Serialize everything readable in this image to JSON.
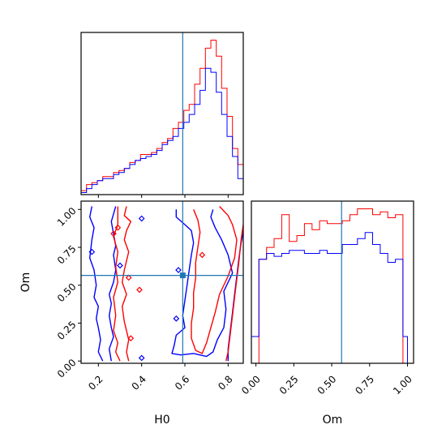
{
  "chart_data": {
    "type": "corner",
    "parameters": [
      "H0",
      "Om"
    ],
    "truth": {
      "H0": 0.59,
      "Om": 0.565
    },
    "colors": {
      "series_a": "#ff0000",
      "series_b": "#0000ff",
      "truth": "#1f77b4"
    },
    "h0_hist": {
      "type": "histogram",
      "x_range": [
        0.12,
        0.87
      ],
      "ticks": [
        0.2,
        0.4,
        0.6,
        0.8
      ],
      "tick_labels": [
        "0.2",
        "0.4",
        "0.6",
        "0.8"
      ],
      "xlabel": "H0",
      "edges": [
        0.12,
        0.145,
        0.17,
        0.195,
        0.22,
        0.245,
        0.27,
        0.295,
        0.32,
        0.345,
        0.37,
        0.395,
        0.42,
        0.445,
        0.47,
        0.495,
        0.52,
        0.545,
        0.57,
        0.595,
        0.62,
        0.645,
        0.67,
        0.695,
        0.72,
        0.745,
        0.77,
        0.795,
        0.82,
        0.845,
        0.87
      ],
      "series": [
        {
          "color_key": "series_a",
          "values": [
            2,
            5,
            6,
            7,
            9,
            9,
            11,
            12,
            13,
            16,
            17,
            20,
            20,
            21,
            23,
            26,
            28,
            33,
            36,
            42,
            45,
            55,
            63,
            73,
            77,
            69,
            53,
            39,
            23,
            15
          ]
        },
        {
          "color_key": "series_b",
          "values": [
            1,
            3,
            5,
            7,
            8,
            8,
            10,
            11,
            13,
            15,
            17,
            18,
            19,
            20,
            22,
            25,
            27,
            29,
            33,
            36,
            40,
            45,
            52,
            63,
            61,
            51,
            40,
            29,
            19,
            8
          ]
        }
      ]
    },
    "om_hist": {
      "type": "histogram",
      "x_range": [
        -0.03,
        1.04
      ],
      "ticks": [
        0.0,
        0.25,
        0.5,
        0.75,
        1.0
      ],
      "tick_labels": [
        "0.00",
        "0.25",
        "0.50",
        "0.75",
        "1.00"
      ],
      "xlabel": "Om",
      "edges": [
        -0.03,
        0.02,
        0.07,
        0.12,
        0.17,
        0.22,
        0.27,
        0.32,
        0.37,
        0.42,
        0.47,
        0.52,
        0.57,
        0.62,
        0.67,
        0.72,
        0.77,
        0.82,
        0.87,
        0.92,
        0.97,
        1.0
      ],
      "series": [
        {
          "color_key": "series_a",
          "values": [
            0,
            35,
            39,
            42,
            50,
            41,
            43,
            47,
            45,
            48,
            47,
            47,
            48,
            50,
            52,
            52,
            50,
            51,
            49,
            50,
            0
          ]
        },
        {
          "color_key": "series_b",
          "values": [
            9,
            35,
            37,
            36,
            37,
            38,
            38,
            37,
            37,
            38,
            37,
            37,
            40,
            40,
            42,
            44,
            40,
            37,
            34,
            35,
            9
          ]
        }
      ]
    },
    "joint": {
      "type": "contour",
      "x_range": [
        0.12,
        0.87
      ],
      "y_range": [
        -0.015,
        1.055
      ],
      "x_ticks": [
        0.2,
        0.4,
        0.6,
        0.8
      ],
      "x_tick_labels": [
        "0.2",
        "0.4",
        "0.6",
        "0.8"
      ],
      "y_ticks": [
        0.0,
        0.25,
        0.5,
        0.75,
        1.0
      ],
      "y_tick_labels": [
        "0.00",
        "0.25",
        "0.50",
        "0.75",
        "1.00"
      ],
      "xlabel": "H0",
      "ylabel": "Om",
      "contours": [
        {
          "color_key": "series_b",
          "points": [
            [
              0.17,
              1.02
            ],
            [
              0.16,
              0.95
            ],
            [
              0.18,
              0.88
            ],
            [
              0.17,
              0.8
            ],
            [
              0.16,
              0.68
            ],
            [
              0.18,
              0.6
            ],
            [
              0.19,
              0.5
            ],
            [
              0.18,
              0.42
            ],
            [
              0.2,
              0.36
            ],
            [
              0.19,
              0.28
            ],
            [
              0.2,
              0.22
            ],
            [
              0.21,
              0.14
            ],
            [
              0.2,
              0.06
            ],
            [
              0.22,
              0.0
            ]
          ]
        },
        {
          "color_key": "series_b",
          "points": [
            [
              0.28,
              1.02
            ],
            [
              0.26,
              0.92
            ],
            [
              0.27,
              0.84
            ],
            [
              0.28,
              0.76
            ],
            [
              0.27,
              0.7
            ],
            [
              0.28,
              0.6
            ],
            [
              0.27,
              0.52
            ],
            [
              0.25,
              0.44
            ],
            [
              0.26,
              0.38
            ],
            [
              0.25,
              0.3
            ],
            [
              0.26,
              0.22
            ],
            [
              0.27,
              0.16
            ],
            [
              0.25,
              0.08
            ],
            [
              0.26,
              0.0
            ]
          ]
        },
        {
          "color_key": "series_a",
          "points": [
            [
              0.33,
              1.02
            ],
            [
              0.32,
              0.96
            ],
            [
              0.35,
              0.92
            ],
            [
              0.33,
              0.86
            ],
            [
              0.32,
              0.8
            ],
            [
              0.34,
              0.72
            ],
            [
              0.33,
              0.66
            ],
            [
              0.32,
              0.6
            ],
            [
              0.31,
              0.52
            ],
            [
              0.33,
              0.44
            ],
            [
              0.31,
              0.36
            ],
            [
              0.32,
              0.26
            ],
            [
              0.33,
              0.2
            ],
            [
              0.34,
              0.14
            ],
            [
              0.33,
              0.06
            ],
            [
              0.34,
              0.0
            ]
          ]
        },
        {
          "color_key": "series_a",
          "points": [
            [
              0.3,
              0.0
            ],
            [
              0.28,
              0.06
            ],
            [
              0.29,
              0.12
            ],
            [
              0.27,
              0.2
            ],
            [
              0.28,
              0.3
            ],
            [
              0.27,
              0.42
            ],
            [
              0.29,
              0.52
            ],
            [
              0.28,
              0.62
            ],
            [
              0.29,
              0.72
            ],
            [
              0.27,
              0.82
            ],
            [
              0.29,
              0.9
            ],
            [
              0.29,
              1.02
            ]
          ]
        },
        {
          "color_key": "series_b",
          "points": [
            [
              0.56,
              1.0
            ],
            [
              0.56,
              0.95
            ],
            [
              0.6,
              0.9
            ],
            [
              0.63,
              0.86
            ],
            [
              0.64,
              0.78
            ],
            [
              0.63,
              0.7
            ],
            [
              0.62,
              0.6
            ],
            [
              0.61,
              0.5
            ],
            [
              0.6,
              0.4
            ],
            [
              0.59,
              0.3
            ],
            [
              0.6,
              0.22
            ],
            [
              0.56,
              0.17
            ],
            [
              0.55,
              0.1
            ],
            [
              0.54,
              0.05
            ],
            [
              0.58,
              0.04
            ],
            [
              0.64,
              0.05
            ],
            [
              0.7,
              0.03
            ],
            [
              0.73,
              0.06
            ],
            [
              0.75,
              0.14
            ],
            [
              0.78,
              0.22
            ],
            [
              0.79,
              0.34
            ],
            [
              0.78,
              0.46
            ],
            [
              0.82,
              0.58
            ],
            [
              0.8,
              0.7
            ],
            [
              0.77,
              0.8
            ],
            [
              0.74,
              0.88
            ],
            [
              0.72,
              0.95
            ],
            [
              0.73,
              1.0
            ]
          ]
        },
        {
          "color_key": "series_a",
          "points": [
            [
              0.64,
              1.0
            ],
            [
              0.66,
              0.93
            ],
            [
              0.67,
              0.85
            ],
            [
              0.66,
              0.75
            ],
            [
              0.65,
              0.65
            ],
            [
              0.65,
              0.55
            ],
            [
              0.64,
              0.45
            ],
            [
              0.64,
              0.35
            ],
            [
              0.63,
              0.25
            ],
            [
              0.63,
              0.15
            ],
            [
              0.65,
              0.07
            ],
            [
              0.68,
              0.05
            ],
            [
              0.7,
              0.12
            ],
            [
              0.72,
              0.22
            ],
            [
              0.74,
              0.32
            ],
            [
              0.76,
              0.44
            ],
            [
              0.8,
              0.56
            ],
            [
              0.83,
              0.68
            ],
            [
              0.84,
              0.8
            ],
            [
              0.82,
              0.9
            ],
            [
              0.8,
              0.96
            ],
            [
              0.76,
              1.02
            ]
          ]
        },
        {
          "color_key": "series_b",
          "points": [
            [
              0.87,
              0.85
            ],
            [
              0.86,
              0.78
            ],
            [
              0.85,
              0.68
            ],
            [
              0.84,
              0.56
            ],
            [
              0.83,
              0.44
            ],
            [
              0.82,
              0.32
            ],
            [
              0.81,
              0.2
            ],
            [
              0.8,
              0.08
            ],
            [
              0.8,
              0.0
            ]
          ]
        },
        {
          "color_key": "series_a",
          "points": [
            [
              0.87,
              0.9
            ],
            [
              0.86,
              0.8
            ],
            [
              0.85,
              0.66
            ],
            [
              0.84,
              0.54
            ],
            [
              0.83,
              0.42
            ],
            [
              0.82,
              0.3
            ],
            [
              0.81,
              0.18
            ],
            [
              0.8,
              0.06
            ],
            [
              0.79,
              0.0
            ]
          ]
        }
      ],
      "markers": [
        {
          "color_key": "series_a",
          "x": 0.29,
          "y": 0.88
        },
        {
          "color_key": "series_b",
          "x": 0.4,
          "y": 0.94
        },
        {
          "color_key": "series_b",
          "x": 0.17,
          "y": 0.72
        },
        {
          "color_key": "series_a",
          "x": 0.27,
          "y": 0.84
        },
        {
          "color_key": "series_b",
          "x": 0.3,
          "y": 0.63
        },
        {
          "color_key": "series_a",
          "x": 0.34,
          "y": 0.55
        },
        {
          "color_key": "series_a",
          "x": 0.39,
          "y": 0.47
        },
        {
          "color_key": "series_b",
          "x": 0.57,
          "y": 0.6
        },
        {
          "color_key": "series_b",
          "x": 0.56,
          "y": 0.28
        },
        {
          "color_key": "series_a",
          "x": 0.68,
          "y": 0.7
        },
        {
          "color_key": "series_a",
          "x": 0.35,
          "y": 0.15
        },
        {
          "color_key": "series_b",
          "x": 0.4,
          "y": 0.02
        }
      ]
    }
  }
}
